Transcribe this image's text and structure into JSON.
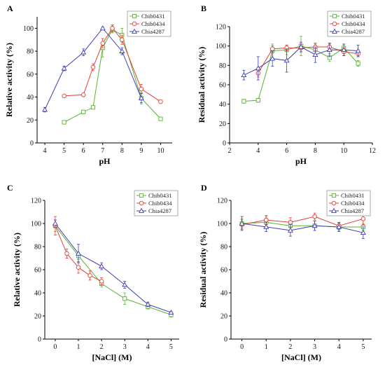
{
  "colors": {
    "Chib0431": "#59b233",
    "Chib0434": "#e0403a",
    "Chia4287": "#3d3db3"
  },
  "chart_data": [
    {
      "type": "line",
      "panel": "A",
      "xlabel": "pH",
      "ylabel": "Relative activity (%)",
      "xlim": [
        3.6,
        10.6
      ],
      "ylim": [
        0,
        110
      ],
      "xticks": [
        4,
        5,
        6,
        7,
        8,
        9,
        10
      ],
      "yticks": [
        0,
        20,
        40,
        60,
        80,
        100
      ],
      "legend_position": "top-right",
      "series": [
        {
          "name": "Chib0431",
          "color": "#59b233",
          "marker": "square",
          "x": [
            5,
            6,
            6.5,
            7,
            7.5,
            8,
            9,
            10
          ],
          "y": [
            18,
            27,
            31,
            83,
            99,
            94,
            39,
            21
          ],
          "err": [
            1,
            1,
            1,
            8,
            3,
            6,
            5,
            1
          ]
        },
        {
          "name": "Chib0434",
          "color": "#e0403a",
          "marker": "circle",
          "x": [
            5,
            6,
            6.5,
            7,
            7.5,
            8,
            9,
            10
          ],
          "y": [
            41,
            42,
            66,
            87,
            100,
            90,
            47,
            36
          ],
          "err": [
            1,
            1,
            3,
            4,
            3,
            4,
            4,
            1
          ]
        },
        {
          "name": "Chia4287",
          "color": "#3d3db3",
          "marker": "triangle",
          "x": [
            4,
            5,
            6,
            7,
            8,
            9
          ],
          "y": [
            29,
            65,
            79,
            100,
            80,
            39
          ],
          "err": [
            2,
            2,
            3,
            1,
            3,
            4
          ]
        }
      ]
    },
    {
      "type": "line",
      "panel": "B",
      "xlabel": "pH",
      "ylabel": "Residual activity (%)",
      "xlim": [
        2,
        12
      ],
      "ylim": [
        0,
        120
      ],
      "xticks": [
        2,
        4,
        6,
        8,
        10,
        12
      ],
      "yticks": [
        0,
        20,
        40,
        60,
        80,
        100,
        120
      ],
      "legend_position": "top-right",
      "series": [
        {
          "name": "Chib0431",
          "color": "#59b233",
          "marker": "square",
          "x": [
            3,
            4,
            5,
            6,
            7,
            8,
            9,
            10,
            11
          ],
          "y": [
            43,
            44,
            95,
            96,
            100,
            96,
            88,
            98,
            82
          ],
          "err": [
            2,
            2,
            7,
            5,
            10,
            6,
            4,
            4,
            3
          ]
        },
        {
          "name": "Chib0434",
          "color": "#e0403a",
          "marker": "circle",
          "x": [
            4,
            5,
            6,
            7,
            8,
            9,
            10,
            11
          ],
          "y": [
            72,
            97,
            98,
            98,
            99,
            99,
            94,
            92
          ],
          "err": [
            4,
            3,
            3,
            4,
            4,
            3,
            4,
            3
          ]
        },
        {
          "name": "Chia4287",
          "color": "#3d3db3",
          "marker": "triangle",
          "x": [
            3,
            4,
            5,
            6,
            7,
            8,
            9,
            10,
            11
          ],
          "y": [
            70,
            77,
            87,
            85,
            99,
            91,
            96,
            96,
            95
          ],
          "err": [
            5,
            12,
            8,
            12,
            5,
            8,
            7,
            6,
            6
          ]
        }
      ]
    },
    {
      "type": "line",
      "panel": "C",
      "xlabel": "[NaCl] (M)",
      "ylabel": "Relative activity (%)",
      "xlim": [
        -0.45,
        5.35
      ],
      "ylim": [
        0,
        120
      ],
      "xticks": [
        0,
        1,
        2,
        3,
        4,
        5
      ],
      "yticks": [
        0,
        20,
        40,
        60,
        80,
        100,
        120
      ],
      "legend_position": "top-right",
      "series": [
        {
          "name": "Chib0431",
          "color": "#59b233",
          "marker": "square",
          "x": [
            0,
            1,
            2,
            3,
            4,
            5
          ],
          "y": [
            98,
            72,
            48,
            35,
            28,
            21
          ],
          "err": [
            5,
            3,
            3,
            5,
            2,
            2
          ]
        },
        {
          "name": "Chib0434",
          "color": "#e0403a",
          "marker": "circle",
          "x": [
            0,
            0.5,
            1,
            1.5,
            2
          ],
          "y": [
            98,
            74,
            62,
            55,
            50
          ],
          "err": [
            8,
            4,
            5,
            4,
            3
          ]
        },
        {
          "name": "Chia4287",
          "color": "#3d3db3",
          "marker": "triangle",
          "x": [
            0,
            1,
            2,
            3,
            4,
            5
          ],
          "y": [
            100,
            74,
            63,
            47,
            30,
            23
          ],
          "err": [
            3,
            8,
            3,
            3,
            2,
            1
          ]
        }
      ]
    },
    {
      "type": "line",
      "panel": "D",
      "xlabel": "[NaCl] (M)",
      "ylabel": "Residual activity (%)",
      "xlim": [
        -0.45,
        5.35
      ],
      "ylim": [
        0,
        120
      ],
      "xticks": [
        0,
        1,
        2,
        3,
        4,
        5
      ],
      "yticks": [
        0,
        20,
        40,
        60,
        80,
        100,
        120
      ],
      "legend_position": "top-right",
      "series": [
        {
          "name": "Chib0431",
          "color": "#59b233",
          "marker": "square",
          "x": [
            0,
            1,
            2,
            3,
            4,
            5
          ],
          "y": [
            100,
            101,
            98,
            98,
            97,
            97
          ],
          "err": [
            4,
            5,
            4,
            4,
            3,
            3
          ]
        },
        {
          "name": "Chib0434",
          "color": "#e0403a",
          "marker": "circle",
          "x": [
            0,
            1,
            2,
            3,
            4,
            5
          ],
          "y": [
            99,
            103,
            101,
            106,
            98,
            104
          ],
          "err": [
            4,
            4,
            4,
            3,
            3,
            5
          ]
        },
        {
          "name": "Chia4287",
          "color": "#3d3db3",
          "marker": "triangle",
          "x": [
            0,
            1,
            2,
            3,
            4,
            5
          ],
          "y": [
            100,
            97,
            94,
            98,
            97,
            92
          ],
          "err": [
            6,
            4,
            5,
            4,
            4,
            5
          ]
        }
      ]
    }
  ]
}
